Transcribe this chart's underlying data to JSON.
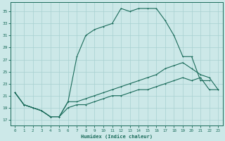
{
  "xlabel": "Humidex (Indice chaleur)",
  "bg_color": "#cce8e8",
  "grid_color": "#a8d0d0",
  "line_color": "#1a6b5a",
  "xlim": [
    -0.5,
    23.5
  ],
  "ylim": [
    16,
    36.5
  ],
  "xticks": [
    0,
    1,
    2,
    3,
    4,
    5,
    6,
    7,
    8,
    9,
    10,
    11,
    12,
    13,
    14,
    15,
    16,
    17,
    18,
    19,
    20,
    21,
    22,
    23
  ],
  "yticks": [
    17,
    19,
    21,
    23,
    25,
    27,
    29,
    31,
    33,
    35
  ],
  "line1_x": [
    0,
    1,
    2,
    3,
    4,
    5,
    6,
    7,
    8,
    9,
    10,
    11,
    12,
    13,
    14,
    15,
    16,
    17,
    18,
    19,
    20,
    21,
    22
  ],
  "line1_y": [
    21.5,
    19.5,
    19.0,
    18.5,
    17.5,
    17.5,
    20.0,
    27.5,
    31.0,
    32.0,
    32.5,
    33.0,
    35.5,
    35.0,
    35.5,
    35.5,
    35.5,
    33.5,
    31.0,
    27.5,
    27.5,
    23.5,
    23.5
  ],
  "line2_x": [
    0,
    1,
    2,
    3,
    4,
    5,
    6,
    7,
    8,
    9,
    10,
    11,
    12,
    13,
    14,
    15,
    16,
    17,
    18,
    19,
    20,
    21,
    22,
    23
  ],
  "line2_y": [
    21.5,
    19.5,
    19.0,
    18.5,
    17.5,
    17.5,
    20.0,
    20.0,
    20.5,
    21.0,
    21.5,
    22.0,
    22.5,
    23.0,
    23.5,
    24.0,
    24.5,
    25.5,
    26.0,
    26.5,
    25.5,
    24.5,
    24.0,
    22.0
  ],
  "line3_x": [
    0,
    1,
    2,
    3,
    4,
    5,
    6,
    7,
    8,
    9,
    10,
    11,
    12,
    13,
    14,
    15,
    16,
    17,
    18,
    19,
    20,
    21,
    22,
    23
  ],
  "line3_y": [
    21.5,
    19.5,
    19.0,
    18.5,
    17.5,
    17.5,
    19.0,
    19.5,
    19.5,
    20.0,
    20.5,
    21.0,
    21.0,
    21.5,
    22.0,
    22.0,
    22.5,
    23.0,
    23.5,
    24.0,
    23.5,
    24.0,
    22.0,
    22.0
  ]
}
